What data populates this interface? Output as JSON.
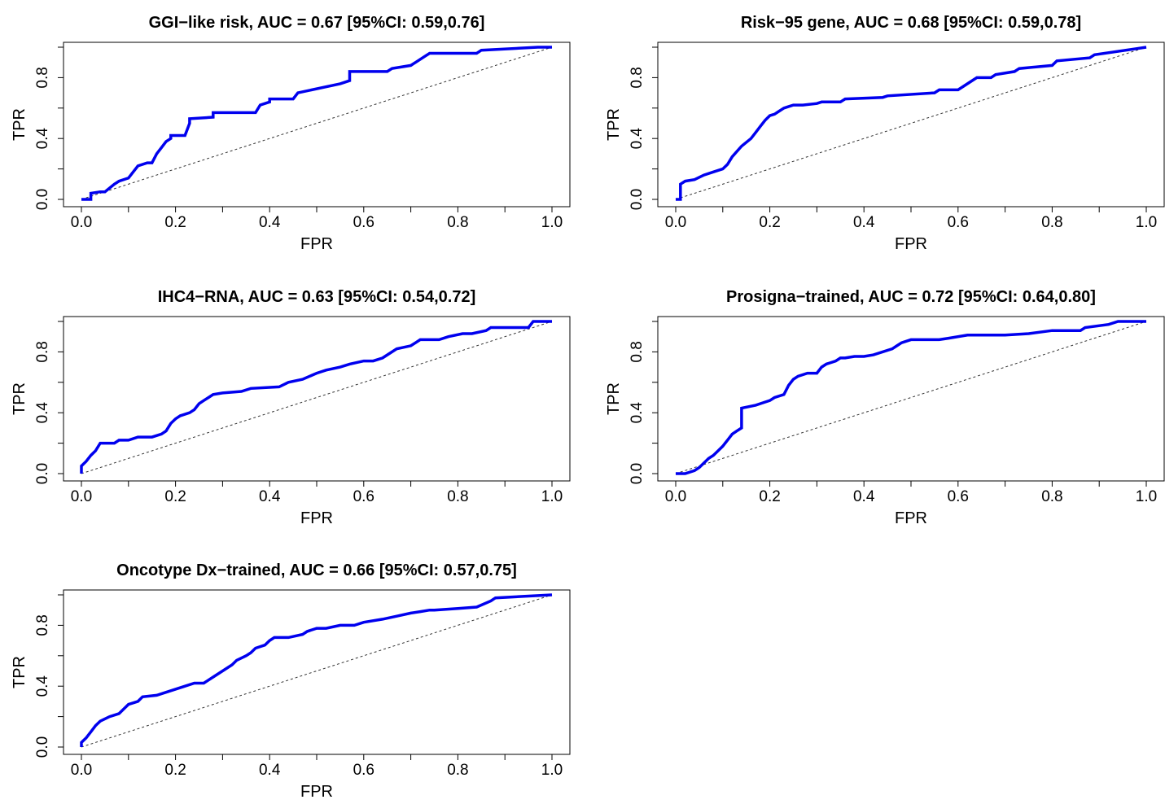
{
  "chart_data": [
    {
      "type": "line",
      "title": "GGI−like risk, AUC = 0.67 [95%CI: 0.59,0.76]",
      "xlabel": "FPR",
      "ylabel": "TPR",
      "xlim": [
        0,
        1
      ],
      "ylim": [
        0,
        1
      ],
      "xticks": [
        "0.0",
        "0.2",
        "0.4",
        "0.6",
        "0.8",
        "1.0"
      ],
      "yticks": [
        "0.0",
        "0.4",
        "0.8"
      ],
      "diagonal": true,
      "series": [
        {
          "color": "#0000ee",
          "x": [
            0.0,
            0.02,
            0.02,
            0.04,
            0.05,
            0.07,
            0.08,
            0.1,
            0.11,
            0.12,
            0.14,
            0.15,
            0.16,
            0.17,
            0.18,
            0.19,
            0.19,
            0.22,
            0.23,
            0.23,
            0.28,
            0.28,
            0.37,
            0.38,
            0.4,
            0.4,
            0.45,
            0.46,
            0.55,
            0.57,
            0.57,
            0.65,
            0.66,
            0.7,
            0.71,
            0.73,
            0.74,
            0.84,
            0.85,
            0.97,
            0.98,
            1.0
          ],
          "y": [
            0.0,
            0.0,
            0.04,
            0.05,
            0.05,
            0.1,
            0.12,
            0.14,
            0.18,
            0.22,
            0.24,
            0.24,
            0.3,
            0.34,
            0.38,
            0.4,
            0.42,
            0.42,
            0.5,
            0.53,
            0.54,
            0.57,
            0.57,
            0.62,
            0.64,
            0.66,
            0.66,
            0.7,
            0.76,
            0.78,
            0.84,
            0.84,
            0.86,
            0.88,
            0.9,
            0.94,
            0.96,
            0.96,
            0.98,
            1.0,
            1.0,
            1.0
          ]
        }
      ]
    },
    {
      "type": "line",
      "title": "Risk−95 gene, AUC = 0.68 [95%CI: 0.59,0.78]",
      "xlabel": "FPR",
      "ylabel": "TPR",
      "xlim": [
        0,
        1
      ],
      "ylim": [
        0,
        1
      ],
      "xticks": [
        "0.0",
        "0.2",
        "0.4",
        "0.6",
        "0.8",
        "1.0"
      ],
      "yticks": [
        "0.0",
        "0.4",
        "0.8"
      ],
      "diagonal": true,
      "series": [
        {
          "color": "#0000ee",
          "x": [
            0.0,
            0.01,
            0.01,
            0.02,
            0.04,
            0.06,
            0.08,
            0.1,
            0.11,
            0.12,
            0.14,
            0.16,
            0.17,
            0.18,
            0.19,
            0.2,
            0.21,
            0.22,
            0.23,
            0.24,
            0.25,
            0.26,
            0.27,
            0.3,
            0.31,
            0.35,
            0.36,
            0.44,
            0.45,
            0.55,
            0.56,
            0.6,
            0.61,
            0.63,
            0.64,
            0.67,
            0.68,
            0.72,
            0.73,
            0.8,
            0.81,
            0.88,
            0.89,
            1.0
          ],
          "y": [
            0.0,
            0.0,
            0.1,
            0.12,
            0.13,
            0.16,
            0.18,
            0.2,
            0.23,
            0.28,
            0.35,
            0.4,
            0.44,
            0.48,
            0.52,
            0.55,
            0.56,
            0.58,
            0.6,
            0.61,
            0.62,
            0.62,
            0.62,
            0.63,
            0.64,
            0.64,
            0.66,
            0.67,
            0.68,
            0.7,
            0.72,
            0.72,
            0.74,
            0.78,
            0.8,
            0.8,
            0.82,
            0.84,
            0.86,
            0.88,
            0.91,
            0.93,
            0.95,
            1.0
          ]
        }
      ]
    },
    {
      "type": "line",
      "title": "IHC4−RNA, AUC = 0.63 [95%CI: 0.54,0.72]",
      "xlabel": "FPR",
      "ylabel": "TPR",
      "xlim": [
        0,
        1
      ],
      "ylim": [
        0,
        1
      ],
      "xticks": [
        "0.0",
        "0.2",
        "0.4",
        "0.6",
        "0.8",
        "1.0"
      ],
      "yticks": [
        "0.0",
        "0.4",
        "0.8"
      ],
      "diagonal": true,
      "series": [
        {
          "color": "#0000ee",
          "x": [
            0.0,
            0.0,
            0.01,
            0.02,
            0.03,
            0.04,
            0.05,
            0.07,
            0.08,
            0.1,
            0.12,
            0.15,
            0.17,
            0.18,
            0.19,
            0.2,
            0.21,
            0.23,
            0.24,
            0.25,
            0.26,
            0.27,
            0.28,
            0.3,
            0.34,
            0.36,
            0.42,
            0.44,
            0.47,
            0.5,
            0.52,
            0.55,
            0.57,
            0.6,
            0.62,
            0.64,
            0.65,
            0.66,
            0.67,
            0.7,
            0.71,
            0.72,
            0.76,
            0.78,
            0.81,
            0.83,
            0.86,
            0.87,
            0.9,
            0.95,
            0.96,
            1.0
          ],
          "y": [
            0.0,
            0.05,
            0.08,
            0.12,
            0.15,
            0.2,
            0.2,
            0.2,
            0.22,
            0.22,
            0.24,
            0.24,
            0.26,
            0.28,
            0.33,
            0.36,
            0.38,
            0.4,
            0.42,
            0.46,
            0.48,
            0.5,
            0.52,
            0.53,
            0.54,
            0.56,
            0.57,
            0.6,
            0.62,
            0.66,
            0.68,
            0.7,
            0.72,
            0.74,
            0.74,
            0.76,
            0.78,
            0.8,
            0.82,
            0.84,
            0.86,
            0.88,
            0.88,
            0.9,
            0.92,
            0.92,
            0.94,
            0.96,
            0.96,
            0.96,
            1.0,
            1.0
          ]
        }
      ]
    },
    {
      "type": "line",
      "title": "Prosigna−trained, AUC = 0.72 [95%CI: 0.64,0.80]",
      "xlabel": "FPR",
      "ylabel": "TPR",
      "xlim": [
        0,
        1
      ],
      "ylim": [
        0,
        1
      ],
      "xticks": [
        "0.0",
        "0.2",
        "0.4",
        "0.6",
        "0.8",
        "1.0"
      ],
      "yticks": [
        "0.0",
        "0.4",
        "0.8"
      ],
      "diagonal": true,
      "series": [
        {
          "color": "#0000ee",
          "x": [
            0.0,
            0.02,
            0.04,
            0.05,
            0.06,
            0.07,
            0.08,
            0.09,
            0.1,
            0.11,
            0.12,
            0.13,
            0.14,
            0.14,
            0.17,
            0.18,
            0.2,
            0.21,
            0.23,
            0.24,
            0.25,
            0.26,
            0.28,
            0.3,
            0.31,
            0.32,
            0.34,
            0.35,
            0.36,
            0.38,
            0.4,
            0.42,
            0.46,
            0.47,
            0.48,
            0.5,
            0.52,
            0.56,
            0.58,
            0.62,
            0.65,
            0.7,
            0.75,
            0.8,
            0.86,
            0.87,
            0.92,
            0.94,
            1.0
          ],
          "y": [
            0.0,
            0.0,
            0.02,
            0.04,
            0.07,
            0.1,
            0.12,
            0.15,
            0.18,
            0.22,
            0.26,
            0.28,
            0.3,
            0.43,
            0.45,
            0.46,
            0.48,
            0.5,
            0.52,
            0.58,
            0.62,
            0.64,
            0.66,
            0.66,
            0.7,
            0.72,
            0.74,
            0.76,
            0.76,
            0.77,
            0.77,
            0.78,
            0.82,
            0.84,
            0.86,
            0.88,
            0.88,
            0.88,
            0.89,
            0.91,
            0.91,
            0.91,
            0.92,
            0.94,
            0.94,
            0.96,
            0.98,
            1.0,
            1.0
          ]
        }
      ]
    },
    {
      "type": "line",
      "title": "Oncotype Dx−trained, AUC = 0.66 [95%CI: 0.57,0.75]",
      "xlabel": "FPR",
      "ylabel": "TPR",
      "xlim": [
        0,
        1
      ],
      "ylim": [
        0,
        1
      ],
      "xticks": [
        "0.0",
        "0.2",
        "0.4",
        "0.6",
        "0.8",
        "1.0"
      ],
      "yticks": [
        "0.0",
        "0.4",
        "0.8"
      ],
      "diagonal": true,
      "series": [
        {
          "color": "#0000ee",
          "x": [
            0.0,
            0.0,
            0.01,
            0.02,
            0.03,
            0.04,
            0.06,
            0.08,
            0.09,
            0.1,
            0.12,
            0.13,
            0.16,
            0.18,
            0.2,
            0.22,
            0.24,
            0.26,
            0.28,
            0.3,
            0.32,
            0.33,
            0.35,
            0.36,
            0.37,
            0.39,
            0.4,
            0.41,
            0.42,
            0.44,
            0.47,
            0.48,
            0.5,
            0.52,
            0.55,
            0.58,
            0.6,
            0.64,
            0.67,
            0.7,
            0.72,
            0.74,
            0.75,
            0.8,
            0.84,
            0.87,
            0.88,
            1.0
          ],
          "y": [
            0.0,
            0.03,
            0.06,
            0.1,
            0.14,
            0.17,
            0.2,
            0.22,
            0.25,
            0.28,
            0.3,
            0.33,
            0.34,
            0.36,
            0.38,
            0.4,
            0.42,
            0.42,
            0.46,
            0.5,
            0.54,
            0.57,
            0.6,
            0.62,
            0.65,
            0.67,
            0.7,
            0.72,
            0.72,
            0.72,
            0.74,
            0.76,
            0.78,
            0.78,
            0.8,
            0.8,
            0.82,
            0.84,
            0.86,
            0.88,
            0.89,
            0.9,
            0.9,
            0.91,
            0.92,
            0.96,
            0.98,
            1.0
          ]
        }
      ]
    }
  ]
}
